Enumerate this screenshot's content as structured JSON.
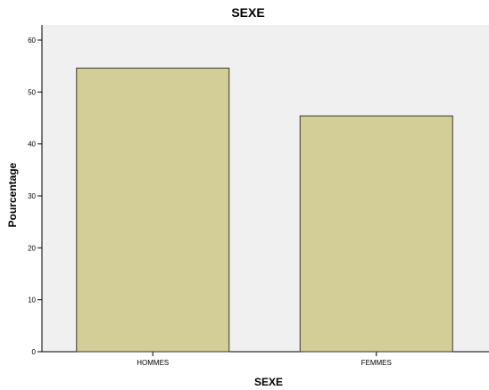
{
  "chart_data": {
    "type": "bar",
    "title": "SEXE",
    "xlabel": "SEXE",
    "ylabel": "Pourcentage",
    "categories": [
      "HOMMES",
      "FEMMES"
    ],
    "values": [
      54.6,
      45.4
    ],
    "ylim": [
      0,
      60
    ],
    "yticks": [
      0,
      10,
      20,
      30,
      40,
      50,
      60
    ],
    "grid": false,
    "colors": {
      "plot_background": "#f0f0f0",
      "bar_fill": "#d3ce97",
      "bar_stroke": "#3a3a2a",
      "axis": "#000000"
    }
  }
}
